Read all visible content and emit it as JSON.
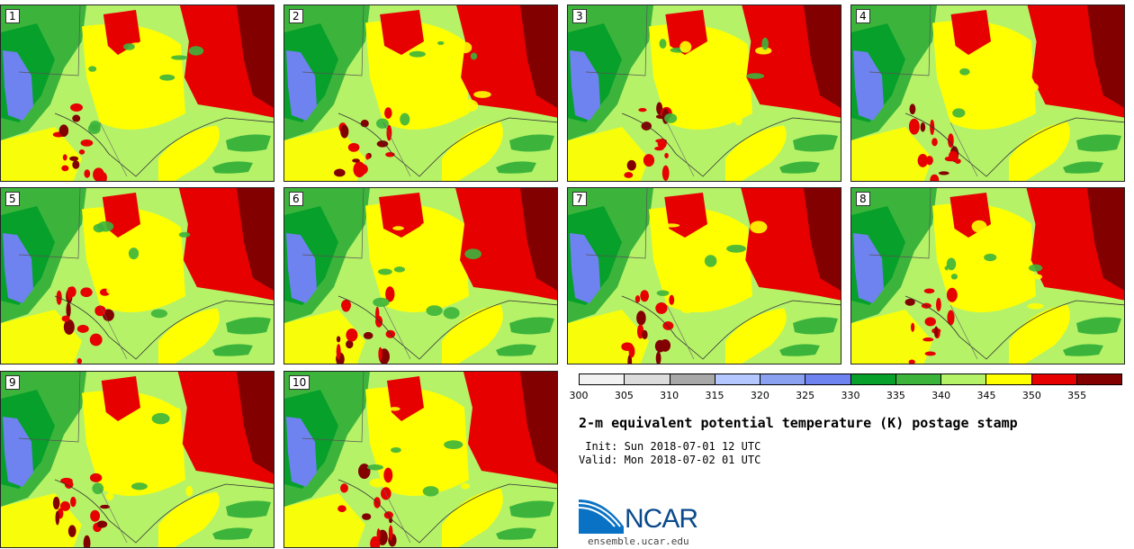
{
  "panels": [
    {
      "label": "1"
    },
    {
      "label": "2"
    },
    {
      "label": "3"
    },
    {
      "label": "4"
    },
    {
      "label": "5"
    },
    {
      "label": "6"
    },
    {
      "label": "7"
    },
    {
      "label": "8"
    },
    {
      "label": "9"
    },
    {
      "label": "10"
    }
  ],
  "colorbar": {
    "ticks": [
      "300",
      "305",
      "310",
      "315",
      "320",
      "325",
      "330",
      "335",
      "340",
      "345",
      "350",
      "355"
    ],
    "colors": [
      "#f2f2f2",
      "#dcdcdc",
      "#a8a8a8",
      "#b4c8ff",
      "#8aa0f0",
      "#6e82f0",
      "#06a02a",
      "#3cb43c",
      "#b6f268",
      "#ffff00",
      "#e60000",
      "#820000"
    ]
  },
  "title": "2-m equivalent potential temperature (K) postage stamp",
  "init": " Init: Sun 2018-07-01 12 UTC",
  "valid": "Valid: Mon 2018-07-02 01 UTC",
  "logo": {
    "text": "NCAR",
    "website": "ensemble.ucar.edu"
  }
}
